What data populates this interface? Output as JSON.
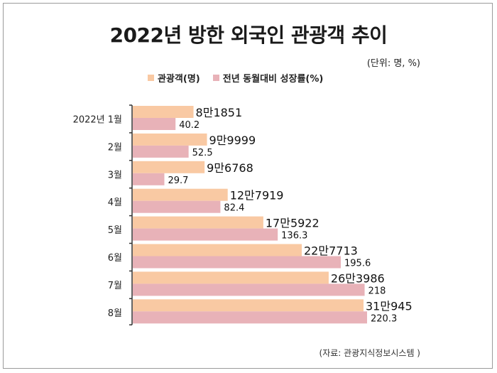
{
  "title": "2022년 방한 외국인 관광객 추이",
  "unit_note": "(단위: 명, %)",
  "source": "(자료: 관광지식정보시스템 )",
  "colors": {
    "tourists": "#f9c9a3",
    "growth": "#e8b2b8"
  },
  "chart_data": {
    "type": "bar",
    "orientation": "horizontal",
    "categories": [
      "2022년 1월",
      "2월",
      "3월",
      "4월",
      "5월",
      "6월",
      "7월",
      "8월"
    ],
    "series": [
      {
        "name": "관광객(명)",
        "values": [
          81851,
          99999,
          96768,
          127919,
          175922,
          227713,
          263986,
          310945
        ],
        "labels": [
          "8만1851",
          "9만9999",
          "9만6768",
          "12만7919",
          "17만5922",
          "22만7713",
          "26만3986",
          "31만945"
        ]
      },
      {
        "name": "전년 동월대비 성장률(%)",
        "values": [
          40.2,
          52.5,
          29.7,
          82.4,
          136.3,
          195.6,
          218,
          220.3
        ],
        "labels": [
          "40.2",
          "52.5",
          "29.7",
          "82.4",
          "136.3",
          "195.6",
          "218",
          "220.3"
        ]
      }
    ],
    "legend_position": "top",
    "grid": false
  }
}
